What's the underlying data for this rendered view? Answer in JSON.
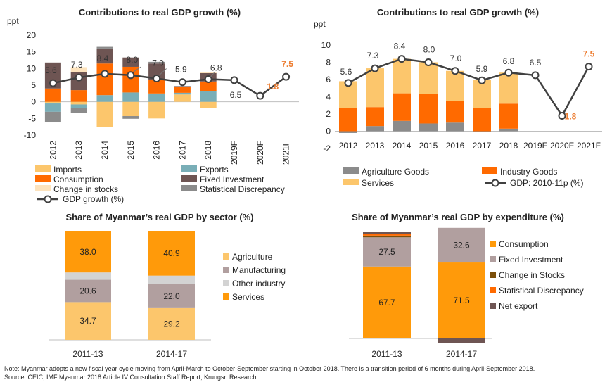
{
  "chart_data": [
    {
      "type": "bar",
      "title": "Contributions to real GDP growth (%)",
      "ylabel": "ppt",
      "ylim": [
        -10,
        20
      ],
      "yticks": [
        "20",
        "15",
        "10",
        "5",
        "0",
        "-5",
        "-10"
      ],
      "categories": [
        "2012",
        "2013",
        "2014",
        "2015",
        "2016",
        "2017",
        "2018",
        "2019F",
        "2020F",
        "2021F"
      ],
      "series": [
        {
          "name": "Imports",
          "color": "#fcc66c",
          "values": [
            -0.5,
            -0.8,
            -7.5,
            -4.3,
            -5,
            2.2,
            -1.8,
            null,
            null,
            null
          ]
        },
        {
          "name": "Exports",
          "color": "#79aeb7",
          "values": [
            -2.5,
            -1,
            2,
            2.8,
            2.5,
            0.5,
            3.3,
            null,
            null,
            null
          ]
        },
        {
          "name": "Consumption",
          "color": "#ff6a00",
          "values": [
            4,
            3.5,
            9.5,
            7.7,
            4,
            1.8,
            2.8,
            null,
            null,
            null
          ]
        },
        {
          "name": "Fixed Investment",
          "color": "#6e5553",
          "values": [
            7.8,
            5.5,
            4.5,
            2.8,
            5,
            0.2,
            2.5,
            null,
            null,
            null
          ]
        },
        {
          "name": "Change in stocks",
          "color": "#fde3bd",
          "values": [
            0,
            1.4,
            0,
            0,
            0,
            0,
            0.2,
            null,
            null,
            null
          ]
        },
        {
          "name": "Statistical Discrepancy",
          "color": "#8b8b8b",
          "values": [
            -3.2,
            -1.5,
            0.5,
            -0.8,
            0.5,
            0,
            0,
            null,
            null,
            null
          ]
        }
      ],
      "line": {
        "name": "GDP growth (%)",
        "values": [
          5.6,
          7.3,
          8.4,
          8.0,
          7.0,
          5.9,
          6.8,
          6.5,
          1.8,
          7.5
        ],
        "labels": [
          "5.6",
          "7.3",
          "8.4",
          "8.0",
          "7.0",
          "5.9",
          "6.8",
          "6.5",
          "1.8",
          "7.5"
        ]
      },
      "legend": [
        "Imports",
        "Exports",
        "Consumption",
        "Fixed Investment",
        "Change in stocks",
        "Statistical Discrepancy",
        "GDP growth (%)"
      ],
      "legend_position": "bottom"
    },
    {
      "type": "bar",
      "title": "Contributions to real GDP growth (%)",
      "ylabel": "ppt",
      "ylim": [
        -2,
        10
      ],
      "yticks": [
        "10",
        "8",
        "6",
        "4",
        "2",
        "0",
        "-2"
      ],
      "categories": [
        "2012",
        "2013",
        "2014",
        "2015",
        "2016",
        "2017",
        "2018",
        "2019F",
        "2020F",
        "2021F"
      ],
      "series": [
        {
          "name": "Agriculture Goods",
          "color": "#8b8b8b",
          "values": [
            -0.2,
            0.6,
            1.2,
            0.9,
            1.0,
            -0.1,
            0.3,
            null,
            null,
            null
          ]
        },
        {
          "name": "Industry Goods",
          "color": "#ff6a00",
          "values": [
            2.7,
            2.2,
            3.2,
            3.4,
            2.5,
            2.7,
            2.9,
            null,
            null,
            null
          ]
        },
        {
          "name": "Services",
          "color": "#fcc66c",
          "values": [
            3.1,
            4.5,
            4.0,
            3.7,
            3.5,
            3.3,
            3.6,
            null,
            null,
            null
          ]
        }
      ],
      "line": {
        "name": "GDP: 2010-11p (%)",
        "values": [
          5.6,
          7.3,
          8.4,
          8.0,
          7.0,
          5.9,
          6.8,
          6.5,
          1.8,
          7.5
        ],
        "labels": [
          "5.6",
          "7.3",
          "8.4",
          "8.0",
          "7.0",
          "5.9",
          "6.8",
          "6.5",
          "1.8",
          "7.5"
        ]
      },
      "legend": [
        "Agriculture Goods",
        "Industry Goods",
        "Services",
        "GDP: 2010-11p (%)"
      ],
      "legend_position": "bottom"
    },
    {
      "type": "bar",
      "title": "Share of Myanmar’s real GDP by sector (%)",
      "categories": [
        "2011-13",
        "2014-17"
      ],
      "series": [
        {
          "name": "Agriculture",
          "color": "#fcc66c",
          "values": [
            34.7,
            29.2
          ],
          "labels": [
            "34.7",
            "29.2"
          ]
        },
        {
          "name": "Manufacturing",
          "color": "#b19f9f",
          "values": [
            20.6,
            22.0
          ],
          "labels": [
            "20.6",
            "22.0"
          ]
        },
        {
          "name": "Other industry",
          "color": "#d3d3d3",
          "values": [
            6.7,
            7.9
          ],
          "labels": [
            "",
            ""
          ]
        },
        {
          "name": "Services",
          "color": "#ff9a0a",
          "values": [
            38.0,
            40.9
          ],
          "labels": [
            "38.0",
            "40.9"
          ]
        }
      ],
      "legend": [
        "Agriculture",
        "Manufacturing",
        "Other industry",
        "Services"
      ],
      "legend_position": "right"
    },
    {
      "type": "bar",
      "title": "Share of Myanmar’s real GDP by expenditure (%)",
      "categories": [
        "2011-13",
        "2014-17"
      ],
      "series": [
        {
          "name": "Consumption",
          "color": "#ff9a0a",
          "values": [
            67.7,
            71.5
          ],
          "labels": [
            "67.7",
            "71.5"
          ]
        },
        {
          "name": "Fixed Investment",
          "color": "#b19f9f",
          "values": [
            27.5,
            32.6
          ],
          "labels": [
            "27.5",
            "32.6"
          ]
        },
        {
          "name": "Change in Stocks",
          "color": "#7b4f0a",
          "values": [
            1.6,
            0
          ],
          "labels": [
            "",
            ""
          ]
        },
        {
          "name": "Statistical Discrepancy",
          "color": "#ff6a00",
          "values": [
            1.8,
            0
          ],
          "labels": [
            "",
            ""
          ]
        },
        {
          "name": "Net export",
          "color": "#6e5553",
          "values": [
            1.4,
            -4.1
          ],
          "labels": [
            "",
            ""
          ]
        }
      ],
      "legend": [
        "Consumption",
        "Fixed Investment",
        "Change in Stocks",
        "Statistical Discrepancy",
        "Net export"
      ],
      "legend_position": "right"
    }
  ],
  "footnote": {
    "note": "Note:    Myanmar adopts a new fiscal year cycle moving from April-March to October-September starting in October 2018. There is a transition period of 6 months during April-September 2018.",
    "source": "Source: CEIC, IMF Myanmar 2018 Article IV Consultation Staff Report, Krungsri Research"
  },
  "colors": {
    "gdp_line": "#404040",
    "forecast_label": "#ed7d31",
    "axis": "#bfbfbf"
  }
}
